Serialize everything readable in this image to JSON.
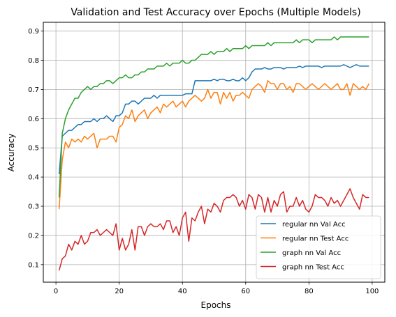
{
  "chart_data": {
    "type": "line",
    "title": "Validation and Test Accuracy over Epochs (Multiple Models)",
    "xlabel": "Epochs",
    "ylabel": "Accuracy",
    "xlim": [
      -4,
      104
    ],
    "ylim": [
      0.04,
      0.93
    ],
    "xticks": [
      0,
      20,
      40,
      60,
      80,
      100
    ],
    "yticks": [
      0.1,
      0.2,
      0.3,
      0.4,
      0.5,
      0.6,
      0.7,
      0.8,
      0.9
    ],
    "grid": true,
    "legend_position": "lower-right",
    "x": [
      1,
      2,
      3,
      4,
      5,
      6,
      7,
      8,
      9,
      10,
      11,
      12,
      13,
      14,
      15,
      16,
      17,
      18,
      19,
      20,
      21,
      22,
      23,
      24,
      25,
      26,
      27,
      28,
      29,
      30,
      31,
      32,
      33,
      34,
      35,
      36,
      37,
      38,
      39,
      40,
      41,
      42,
      43,
      44,
      45,
      46,
      47,
      48,
      49,
      50,
      51,
      52,
      53,
      54,
      55,
      56,
      57,
      58,
      59,
      60,
      61,
      62,
      63,
      64,
      65,
      66,
      67,
      68,
      69,
      70,
      71,
      72,
      73,
      74,
      75,
      76,
      77,
      78,
      79,
      80,
      81,
      82,
      83,
      84,
      85,
      86,
      87,
      88,
      89,
      90,
      91,
      92,
      93,
      94,
      95,
      96,
      97,
      98,
      99
    ],
    "series": [
      {
        "name": "regular nn Val Acc",
        "color": "#1f77b4",
        "values": [
          0.41,
          0.54,
          0.55,
          0.56,
          0.56,
          0.57,
          0.58,
          0.58,
          0.59,
          0.59,
          0.59,
          0.6,
          0.59,
          0.6,
          0.6,
          0.61,
          0.6,
          0.59,
          0.61,
          0.61,
          0.62,
          0.65,
          0.65,
          0.66,
          0.66,
          0.65,
          0.66,
          0.67,
          0.67,
          0.67,
          0.68,
          0.67,
          0.68,
          0.68,
          0.68,
          0.68,
          0.68,
          0.68,
          0.68,
          0.68,
          0.685,
          0.685,
          0.685,
          0.73,
          0.73,
          0.73,
          0.73,
          0.73,
          0.73,
          0.735,
          0.73,
          0.735,
          0.735,
          0.73,
          0.73,
          0.735,
          0.73,
          0.73,
          0.74,
          0.73,
          0.74,
          0.76,
          0.77,
          0.77,
          0.77,
          0.775,
          0.77,
          0.77,
          0.775,
          0.775,
          0.775,
          0.77,
          0.775,
          0.775,
          0.775,
          0.775,
          0.78,
          0.775,
          0.78,
          0.78,
          0.78,
          0.78,
          0.78,
          0.775,
          0.78,
          0.78,
          0.78,
          0.78,
          0.78,
          0.78,
          0.785,
          0.78,
          0.775,
          0.78,
          0.785,
          0.78,
          0.78,
          0.78,
          0.78
        ]
      },
      {
        "name": "regular nn Test Acc",
        "color": "#ff7f0e",
        "values": [
          0.29,
          0.46,
          0.52,
          0.5,
          0.53,
          0.52,
          0.53,
          0.52,
          0.54,
          0.53,
          0.54,
          0.55,
          0.5,
          0.53,
          0.53,
          0.53,
          0.54,
          0.54,
          0.52,
          0.57,
          0.58,
          0.61,
          0.6,
          0.63,
          0.59,
          0.61,
          0.62,
          0.63,
          0.6,
          0.62,
          0.63,
          0.64,
          0.62,
          0.65,
          0.64,
          0.65,
          0.66,
          0.64,
          0.65,
          0.66,
          0.64,
          0.66,
          0.67,
          0.68,
          0.67,
          0.66,
          0.67,
          0.7,
          0.67,
          0.69,
          0.69,
          0.65,
          0.69,
          0.67,
          0.69,
          0.66,
          0.68,
          0.68,
          0.69,
          0.68,
          0.67,
          0.7,
          0.71,
          0.72,
          0.71,
          0.69,
          0.73,
          0.72,
          0.72,
          0.7,
          0.72,
          0.72,
          0.7,
          0.71,
          0.69,
          0.72,
          0.72,
          0.71,
          0.7,
          0.71,
          0.72,
          0.71,
          0.7,
          0.71,
          0.72,
          0.71,
          0.7,
          0.71,
          0.72,
          0.7,
          0.7,
          0.72,
          0.68,
          0.72,
          0.71,
          0.7,
          0.71,
          0.7,
          0.72
        ]
      },
      {
        "name": "graph nn Val Acc",
        "color": "#2ca02c",
        "values": [
          0.33,
          0.55,
          0.6,
          0.63,
          0.65,
          0.67,
          0.67,
          0.69,
          0.7,
          0.71,
          0.7,
          0.71,
          0.71,
          0.72,
          0.72,
          0.73,
          0.73,
          0.72,
          0.73,
          0.74,
          0.74,
          0.75,
          0.74,
          0.74,
          0.75,
          0.75,
          0.76,
          0.76,
          0.77,
          0.77,
          0.77,
          0.78,
          0.78,
          0.78,
          0.79,
          0.78,
          0.79,
          0.79,
          0.79,
          0.8,
          0.79,
          0.79,
          0.8,
          0.8,
          0.81,
          0.82,
          0.82,
          0.82,
          0.83,
          0.82,
          0.83,
          0.83,
          0.83,
          0.84,
          0.83,
          0.84,
          0.84,
          0.84,
          0.84,
          0.85,
          0.84,
          0.85,
          0.85,
          0.85,
          0.85,
          0.85,
          0.86,
          0.85,
          0.86,
          0.86,
          0.86,
          0.86,
          0.86,
          0.86,
          0.86,
          0.87,
          0.86,
          0.87,
          0.87,
          0.87,
          0.86,
          0.87,
          0.87,
          0.87,
          0.87,
          0.87,
          0.87,
          0.88,
          0.87,
          0.88,
          0.88,
          0.88,
          0.88,
          0.88,
          0.88,
          0.88,
          0.88,
          0.88,
          0.88
        ]
      },
      {
        "name": "graph nn Test Acc",
        "color": "#d62728",
        "values": [
          0.08,
          0.12,
          0.13,
          0.17,
          0.15,
          0.18,
          0.17,
          0.2,
          0.17,
          0.18,
          0.21,
          0.21,
          0.22,
          0.2,
          0.21,
          0.22,
          0.21,
          0.2,
          0.24,
          0.15,
          0.19,
          0.15,
          0.17,
          0.22,
          0.15,
          0.23,
          0.23,
          0.2,
          0.23,
          0.24,
          0.23,
          0.23,
          0.24,
          0.22,
          0.25,
          0.25,
          0.21,
          0.23,
          0.2,
          0.26,
          0.28,
          0.18,
          0.26,
          0.25,
          0.28,
          0.3,
          0.24,
          0.29,
          0.28,
          0.31,
          0.3,
          0.28,
          0.32,
          0.33,
          0.33,
          0.34,
          0.33,
          0.3,
          0.32,
          0.29,
          0.34,
          0.33,
          0.29,
          0.34,
          0.33,
          0.28,
          0.33,
          0.28,
          0.32,
          0.3,
          0.34,
          0.35,
          0.28,
          0.3,
          0.3,
          0.33,
          0.3,
          0.32,
          0.29,
          0.28,
          0.3,
          0.34,
          0.33,
          0.33,
          0.32,
          0.3,
          0.33,
          0.31,
          0.32,
          0.3,
          0.32,
          0.34,
          0.36,
          0.33,
          0.31,
          0.29,
          0.34,
          0.33,
          0.33
        ]
      }
    ]
  }
}
